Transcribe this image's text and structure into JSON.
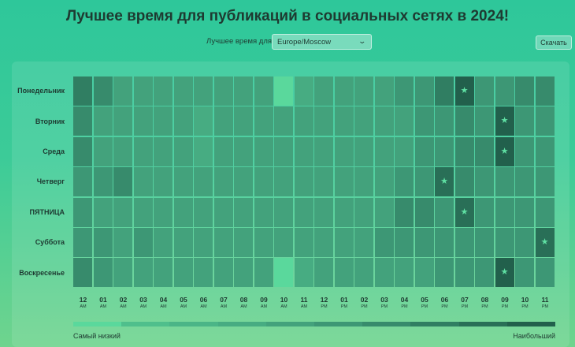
{
  "header": {
    "title": "Лучшее время для публикаций в социальных сетях в 2024!",
    "timezone_label": "Лучшее время для",
    "timezone_value": "Europe/Moscow",
    "download_label": "Скачать"
  },
  "heatmap": {
    "days": [
      "Понедельник",
      "Вторник",
      "Среда",
      "Четверг",
      "ПЯТНИЦА",
      "Суббота",
      "Воскресенье"
    ],
    "hours": [
      {
        "num": "12",
        "suffix": "AM"
      },
      {
        "num": "01",
        "suffix": "AM"
      },
      {
        "num": "02",
        "suffix": "AM"
      },
      {
        "num": "03",
        "suffix": "AM"
      },
      {
        "num": "04",
        "suffix": "AM"
      },
      {
        "num": "05",
        "suffix": "AM"
      },
      {
        "num": "06",
        "suffix": "AM"
      },
      {
        "num": "07",
        "suffix": "AM"
      },
      {
        "num": "08",
        "suffix": "AM"
      },
      {
        "num": "09",
        "suffix": "AM"
      },
      {
        "num": "10",
        "suffix": "AM"
      },
      {
        "num": "11",
        "suffix": "AM"
      },
      {
        "num": "12",
        "suffix": "PM"
      },
      {
        "num": "01",
        "suffix": "PM"
      },
      {
        "num": "02",
        "suffix": "PM"
      },
      {
        "num": "03",
        "suffix": "PM"
      },
      {
        "num": "04",
        "suffix": "PM"
      },
      {
        "num": "05",
        "suffix": "PM"
      },
      {
        "num": "06",
        "suffix": "PM"
      },
      {
        "num": "07",
        "suffix": "PM"
      },
      {
        "num": "08",
        "suffix": "PM"
      },
      {
        "num": "09",
        "suffix": "PM"
      },
      {
        "num": "10",
        "suffix": "PM"
      },
      {
        "num": "11",
        "suffix": "PM"
      }
    ],
    "levels": [
      [
        7,
        6,
        4,
        4,
        4,
        4,
        4,
        4,
        4,
        4,
        0,
        3,
        4,
        4,
        4,
        4,
        5,
        5,
        7,
        9,
        5,
        5,
        6,
        6
      ],
      [
        6,
        4,
        4,
        4,
        4,
        4,
        3,
        4,
        4,
        4,
        4,
        4,
        4,
        4,
        4,
        4,
        4,
        5,
        5,
        6,
        5,
        9,
        5,
        5
      ],
      [
        6,
        4,
        4,
        4,
        4,
        4,
        3,
        4,
        4,
        4,
        4,
        4,
        4,
        4,
        4,
        4,
        4,
        5,
        5,
        6,
        6,
        9,
        5,
        5
      ],
      [
        5,
        5,
        6,
        4,
        4,
        4,
        4,
        4,
        4,
        4,
        4,
        4,
        4,
        4,
        4,
        4,
        5,
        5,
        8,
        6,
        5,
        5,
        5,
        5
      ],
      [
        5,
        4,
        4,
        4,
        4,
        4,
        4,
        4,
        4,
        4,
        4,
        4,
        4,
        4,
        4,
        4,
        6,
        6,
        5,
        8,
        5,
        5,
        5,
        5
      ],
      [
        5,
        5,
        4,
        5,
        4,
        4,
        4,
        4,
        4,
        4,
        4,
        4,
        4,
        4,
        4,
        5,
        5,
        5,
        5,
        5,
        5,
        5,
        5,
        8
      ],
      [
        6,
        5,
        4,
        4,
        4,
        4,
        4,
        4,
        4,
        4,
        0,
        3,
        4,
        4,
        4,
        4,
        4,
        4,
        5,
        5,
        5,
        9,
        5,
        5
      ]
    ],
    "stars": [
      [
        0,
        19
      ],
      [
        1,
        21
      ],
      [
        2,
        21
      ],
      [
        3,
        18
      ],
      [
        4,
        19
      ],
      [
        5,
        23
      ],
      [
        6,
        21
      ]
    ]
  },
  "palette": {
    "levels": [
      "#5ad89c",
      "#4fbf8c",
      "#4bb587",
      "#47ac82",
      "#43a27c",
      "#3d9775",
      "#378b6c",
      "#307e62",
      "#296f57",
      "#22604c"
    ],
    "star": "#5fe0a3",
    "grid_line": "#7ee3b0"
  },
  "legend": {
    "low": "Самый низкий",
    "high": "Наибольший"
  }
}
